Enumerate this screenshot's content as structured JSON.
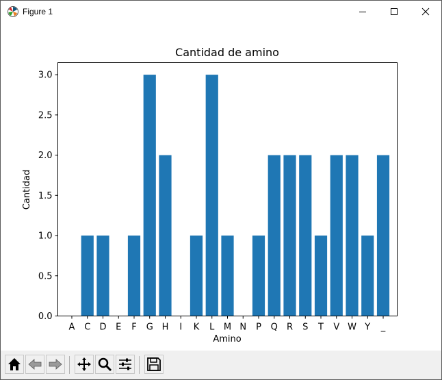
{
  "window": {
    "title": "Figure 1",
    "icons": [
      "matplotlib-logo-icon",
      "minimize-icon",
      "maximize-icon",
      "close-icon"
    ]
  },
  "toolbar": {
    "buttons": [
      {
        "name": "home-button",
        "icon": "home-icon"
      },
      {
        "name": "back-button",
        "icon": "back-arrow-icon"
      },
      {
        "name": "forward-button",
        "icon": "forward-arrow-icon"
      },
      {
        "name": "pan-button",
        "icon": "move-icon"
      },
      {
        "name": "zoom-button",
        "icon": "magnifier-icon"
      },
      {
        "name": "configure-subplots-button",
        "icon": "sliders-icon"
      },
      {
        "name": "save-button",
        "icon": "floppy-disk-icon"
      }
    ]
  },
  "chart_data": {
    "type": "bar",
    "title": "Cantidad de amino",
    "xlabel": "Amino",
    "ylabel": "Cantidad",
    "categories": [
      "A",
      "C",
      "D",
      "E",
      "F",
      "G",
      "H",
      "I",
      "K",
      "L",
      "M",
      "N",
      "P",
      "Q",
      "R",
      "S",
      "T",
      "V",
      "W",
      "Y",
      "_"
    ],
    "values": [
      0,
      1,
      1,
      0,
      1,
      3,
      2,
      0,
      1,
      3,
      1,
      0,
      1,
      2,
      2,
      2,
      1,
      2,
      2,
      1,
      2
    ],
    "ylim": [
      0,
      3.15
    ],
    "yticks": [
      "0.0",
      "0.5",
      "1.0",
      "1.5",
      "2.0",
      "2.5",
      "3.0"
    ],
    "bar_color": "#1f77b4",
    "grid": false,
    "legend": "none"
  }
}
